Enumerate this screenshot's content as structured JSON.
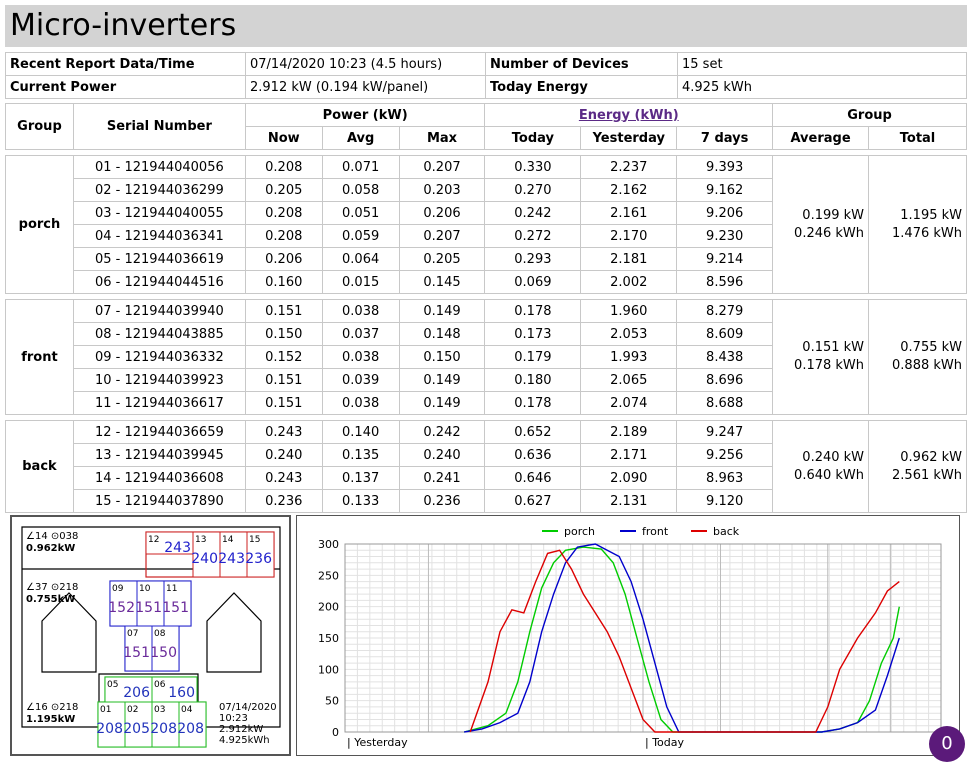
{
  "title": "Micro-inverters",
  "info": {
    "report_label": "Recent Report Data/Time",
    "report_value": "07/14/2020 10:23 (4.5 hours)",
    "devices_label": "Number of Devices",
    "devices_value": "15 set",
    "power_label": "Current Power",
    "power_value": "2.912 kW (0.194 kW/panel)",
    "energy_label": "Today Energy",
    "energy_value": "4.925 kWh"
  },
  "table": {
    "headers": {
      "group": "Group",
      "serial": "Serial Number",
      "power": "Power (kW)",
      "energy": "Energy (kWh)",
      "groupcol": "Group",
      "now": "Now",
      "avg": "Avg",
      "max": "Max",
      "today": "Today",
      "yesterday": "Yesterday",
      "days7": "7 days",
      "average": "Average",
      "total": "Total"
    },
    "groups": [
      {
        "name": "porch",
        "avg_kw": "0.199 kW",
        "avg_kwh": "0.246 kWh",
        "total_kw": "1.195 kW",
        "total_kwh": "1.476 kWh",
        "rows": [
          [
            "01 - 121944040056",
            "0.208",
            "0.071",
            "0.207",
            "0.330",
            "2.237",
            "9.393"
          ],
          [
            "02 - 121944036299",
            "0.205",
            "0.058",
            "0.203",
            "0.270",
            "2.162",
            "9.162"
          ],
          [
            "03 - 121944040055",
            "0.208",
            "0.051",
            "0.206",
            "0.242",
            "2.161",
            "9.206"
          ],
          [
            "04 - 121944036341",
            "0.208",
            "0.059",
            "0.207",
            "0.272",
            "2.170",
            "9.230"
          ],
          [
            "05 - 121944036619",
            "0.206",
            "0.064",
            "0.205",
            "0.293",
            "2.181",
            "9.214"
          ],
          [
            "06 - 121944044516",
            "0.160",
            "0.015",
            "0.145",
            "0.069",
            "2.002",
            "8.596"
          ]
        ]
      },
      {
        "name": "front",
        "avg_kw": "0.151 kW",
        "avg_kwh": "0.178 kWh",
        "total_kw": "0.755 kW",
        "total_kwh": "0.888 kWh",
        "rows": [
          [
            "07 - 121944039940",
            "0.151",
            "0.038",
            "0.149",
            "0.178",
            "1.960",
            "8.279"
          ],
          [
            "08 - 121944043885",
            "0.150",
            "0.037",
            "0.148",
            "0.173",
            "2.053",
            "8.609"
          ],
          [
            "09 - 121944036332",
            "0.152",
            "0.038",
            "0.150",
            "0.179",
            "1.993",
            "8.438"
          ],
          [
            "10 - 121944039923",
            "0.151",
            "0.039",
            "0.149",
            "0.180",
            "2.065",
            "8.696"
          ],
          [
            "11 - 121944036617",
            "0.151",
            "0.038",
            "0.149",
            "0.178",
            "2.074",
            "8.688"
          ]
        ]
      },
      {
        "name": "back",
        "avg_kw": "0.240 kW",
        "avg_kwh": "0.640 kWh",
        "total_kw": "0.962 kW",
        "total_kwh": "2.561 kWh",
        "rows": [
          [
            "12 - 121944036659",
            "0.243",
            "0.140",
            "0.242",
            "0.652",
            "2.189",
            "9.247"
          ],
          [
            "13 - 121944039945",
            "0.240",
            "0.135",
            "0.240",
            "0.636",
            "2.171",
            "9.256"
          ],
          [
            "14 - 121944036608",
            "0.243",
            "0.137",
            "0.241",
            "0.646",
            "2.090",
            "8.963"
          ],
          [
            "15 - 121944037890",
            "0.236",
            "0.133",
            "0.236",
            "0.627",
            "2.131",
            "9.120"
          ]
        ]
      }
    ]
  },
  "map": {
    "back_info": {
      "angles": "∠14 ⊙038",
      "power": "0.962kW"
    },
    "front_info": {
      "angles": "∠37 ⊙218",
      "power": "0.755kW"
    },
    "porch_info": {
      "angles": "∠16 ⊙218",
      "power": "1.195kW"
    },
    "footer": [
      "07/14/2020",
      "10:23",
      "2.912kW",
      "4.925kWh"
    ],
    "panels": [
      {
        "id": "12",
        "val": "243",
        "group": "back"
      },
      {
        "id": "13",
        "val": "240",
        "group": "back"
      },
      {
        "id": "14",
        "val": "243",
        "group": "back"
      },
      {
        "id": "15",
        "val": "236",
        "group": "back"
      },
      {
        "id": "09",
        "val": "152",
        "group": "front"
      },
      {
        "id": "10",
        "val": "151",
        "group": "front"
      },
      {
        "id": "11",
        "val": "151",
        "group": "front"
      },
      {
        "id": "07",
        "val": "151",
        "group": "front"
      },
      {
        "id": "08",
        "val": "150",
        "group": "front"
      },
      {
        "id": "05",
        "val": "206",
        "group": "porch"
      },
      {
        "id": "06",
        "val": "160",
        "group": "porch"
      },
      {
        "id": "01",
        "val": "208",
        "group": "porch"
      },
      {
        "id": "02",
        "val": "205",
        "group": "porch"
      },
      {
        "id": "03",
        "val": "208",
        "group": "porch"
      },
      {
        "id": "04",
        "val": "208",
        "group": "porch"
      }
    ],
    "colors": {
      "back": "#cc2222",
      "front": "#2222cc",
      "front_text": "#6a2a9a",
      "porch": "#22bb22",
      "porch_text": "#2233bb"
    }
  },
  "chart_data": {
    "type": "line",
    "legend": [
      "porch",
      "front",
      "back"
    ],
    "colors": {
      "porch": "#00cc00",
      "front": "#0000cc",
      "back": "#dd0000"
    },
    "ylim": [
      0,
      300
    ],
    "yticks": [
      0,
      50,
      100,
      150,
      200,
      250,
      300
    ],
    "xlabels": [
      "| Yesterday",
      "| Today"
    ],
    "series": [
      {
        "name": "porch",
        "points": [
          [
            0.2,
            0
          ],
          [
            0.24,
            10
          ],
          [
            0.27,
            30
          ],
          [
            0.29,
            80
          ],
          [
            0.31,
            160
          ],
          [
            0.33,
            230
          ],
          [
            0.35,
            270
          ],
          [
            0.37,
            290
          ],
          [
            0.4,
            295
          ],
          [
            0.43,
            292
          ],
          [
            0.45,
            270
          ],
          [
            0.47,
            220
          ],
          [
            0.49,
            150
          ],
          [
            0.51,
            80
          ],
          [
            0.53,
            20
          ],
          [
            0.55,
            0
          ],
          [
            0.8,
            0
          ],
          [
            0.83,
            5
          ],
          [
            0.86,
            15
          ],
          [
            0.88,
            50
          ],
          [
            0.9,
            110
          ],
          [
            0.92,
            150
          ],
          [
            0.93,
            200
          ]
        ]
      },
      {
        "name": "front",
        "points": [
          [
            0.2,
            0
          ],
          [
            0.23,
            5
          ],
          [
            0.26,
            15
          ],
          [
            0.29,
            30
          ],
          [
            0.31,
            80
          ],
          [
            0.33,
            160
          ],
          [
            0.35,
            220
          ],
          [
            0.37,
            270
          ],
          [
            0.39,
            295
          ],
          [
            0.42,
            300
          ],
          [
            0.44,
            290
          ],
          [
            0.46,
            280
          ],
          [
            0.48,
            240
          ],
          [
            0.5,
            180
          ],
          [
            0.52,
            110
          ],
          [
            0.54,
            40
          ],
          [
            0.56,
            0
          ],
          [
            0.8,
            0
          ],
          [
            0.83,
            5
          ],
          [
            0.86,
            15
          ],
          [
            0.89,
            35
          ],
          [
            0.91,
            90
          ],
          [
            0.93,
            150
          ]
        ]
      },
      {
        "name": "back",
        "points": [
          [
            0.21,
            0
          ],
          [
            0.24,
            80
          ],
          [
            0.26,
            160
          ],
          [
            0.28,
            195
          ],
          [
            0.3,
            190
          ],
          [
            0.32,
            240
          ],
          [
            0.34,
            285
          ],
          [
            0.36,
            290
          ],
          [
            0.38,
            260
          ],
          [
            0.4,
            220
          ],
          [
            0.42,
            190
          ],
          [
            0.44,
            160
          ],
          [
            0.46,
            120
          ],
          [
            0.48,
            70
          ],
          [
            0.5,
            20
          ],
          [
            0.52,
            0
          ],
          [
            0.79,
            0
          ],
          [
            0.81,
            40
          ],
          [
            0.83,
            100
          ],
          [
            0.86,
            150
          ],
          [
            0.89,
            190
          ],
          [
            0.91,
            225
          ],
          [
            0.93,
            240
          ]
        ]
      }
    ]
  },
  "badge": "0"
}
